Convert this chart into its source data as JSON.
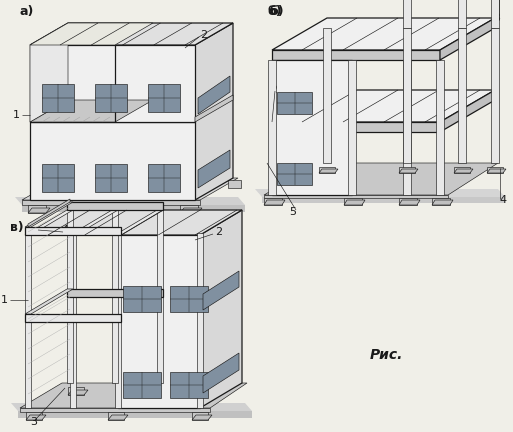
{
  "figure_width": 5.13,
  "figure_height": 4.32,
  "dpi": 100,
  "bg_color": "#f0efe8",
  "label_a": "а)",
  "label_b": "б)",
  "label_v": "в)",
  "caption": "Рис.",
  "label_fontsize": 9,
  "caption_fontsize": 10,
  "line_color": "#1a1a1a",
  "wall_color": "#f0f0f0",
  "wall_side_color": "#d8d8d8",
  "roof_color": "#e0e0e0",
  "slab_color": "#c8c8c8",
  "window_color": "#8090a0",
  "col_color": "#e8e8e8",
  "lw_main": 0.9,
  "lw_thin": 0.45,
  "lw_thick": 1.3
}
